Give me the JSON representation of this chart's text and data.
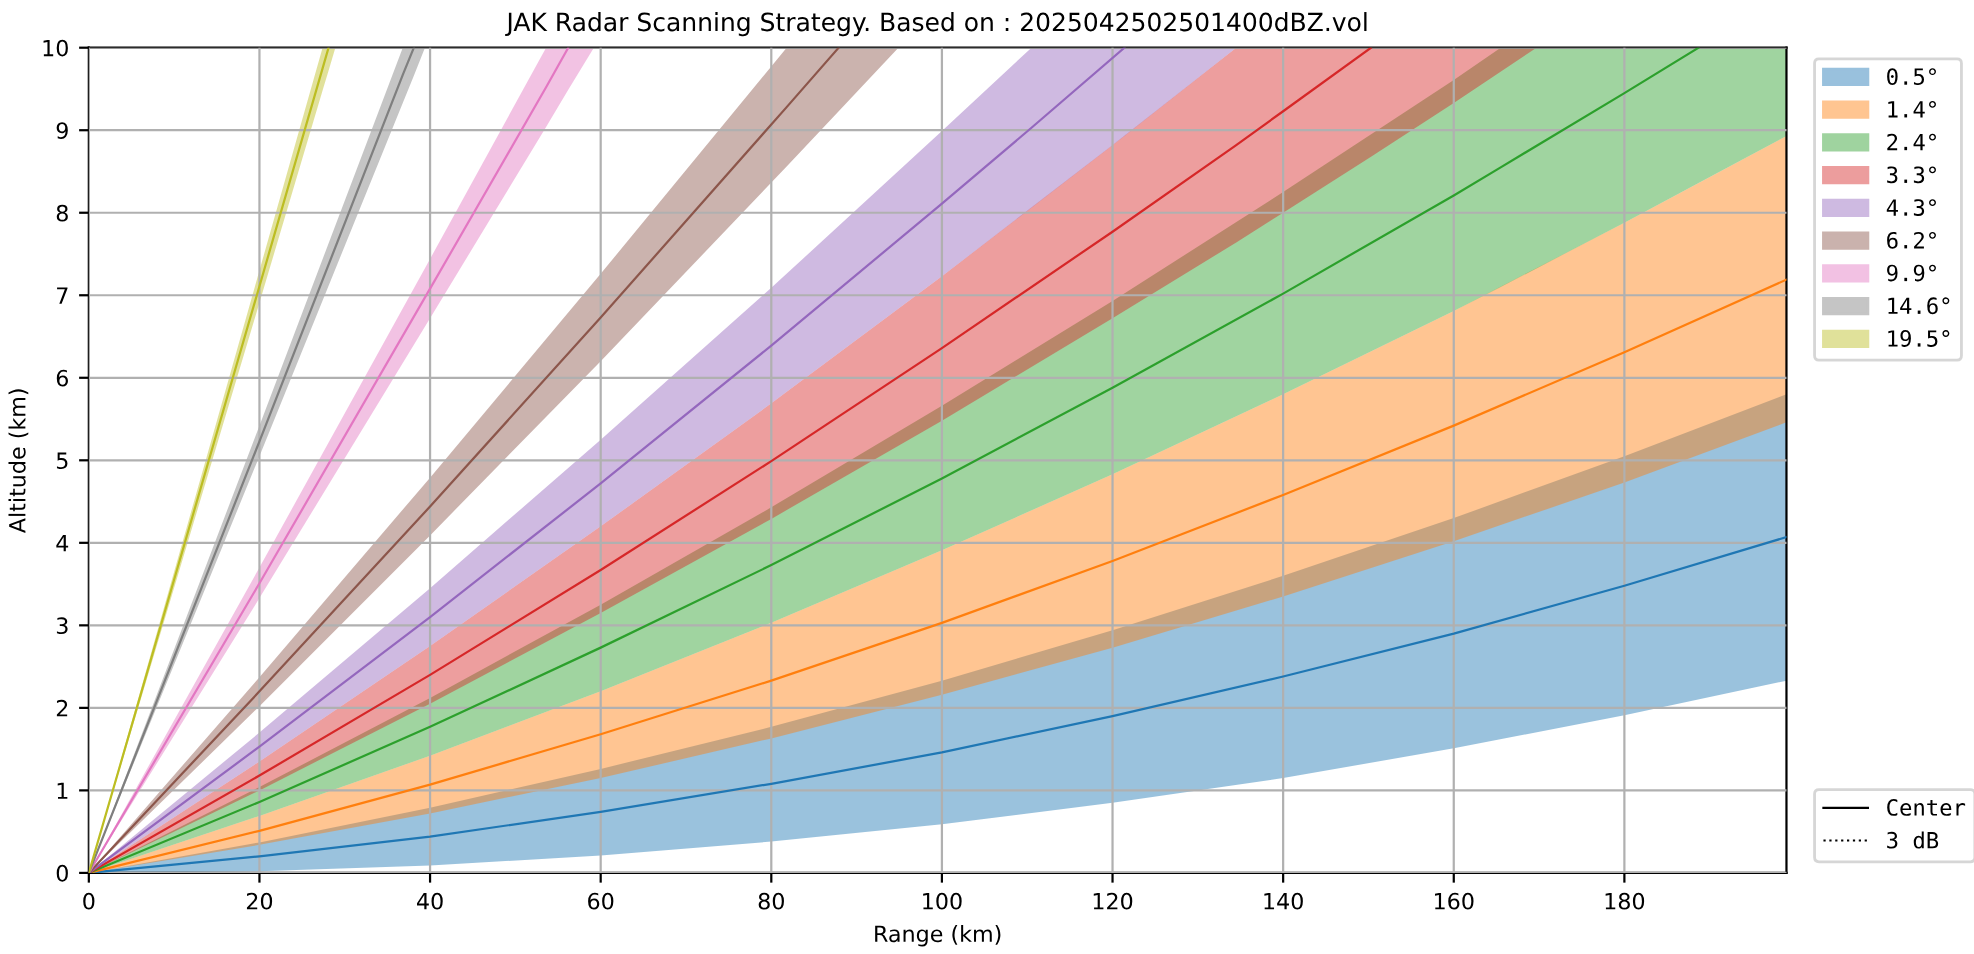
{
  "chart_data": {
    "type": "line",
    "title": "JAK Radar Scanning Strategy. Based on : 2025042502501400dBZ.vol",
    "xlabel": "Range (km)",
    "ylabel": "Altitude (km)",
    "xlim": [
      0,
      199
    ],
    "ylim": [
      0,
      10
    ],
    "xticks": [
      0,
      20,
      40,
      60,
      80,
      100,
      120,
      140,
      160,
      180
    ],
    "yticks": [
      0,
      1,
      2,
      3,
      4,
      5,
      6,
      7,
      8,
      9,
      10
    ],
    "grid": true,
    "legend": "right",
    "annotations": [
      "Center",
      "3 dB"
    ],
    "series": [
      {
        "name": "0.5°",
        "color": "#1f77b4",
        "x": [
          0,
          20,
          40,
          60,
          80,
          100,
          120,
          140,
          160,
          180,
          199
        ],
        "values": [
          0,
          0.2,
          0.44,
          0.74,
          1.08,
          1.46,
          1.9,
          2.38,
          2.9,
          3.48,
          4.07
        ],
        "lower": [
          0,
          0.02,
          0.09,
          0.21,
          0.38,
          0.59,
          0.85,
          1.15,
          1.51,
          1.91,
          2.33
        ],
        "upper": [
          0,
          0.37,
          0.79,
          1.26,
          1.77,
          2.33,
          2.94,
          3.6,
          4.3,
          5.05,
          5.8
        ]
      },
      {
        "name": "1.4°",
        "color": "#ff7f0e",
        "x": [
          0,
          20,
          40,
          60,
          80,
          100,
          120,
          140,
          160,
          180,
          199
        ],
        "values": [
          0,
          0.51,
          1.07,
          1.68,
          2.33,
          3.03,
          3.78,
          4.58,
          5.42,
          6.31,
          7.19
        ],
        "lower": [
          0,
          0.34,
          0.72,
          1.15,
          1.63,
          2.16,
          2.73,
          3.35,
          4.02,
          4.73,
          5.46
        ],
        "upper": [
          0,
          0.69,
          1.42,
          2.2,
          3.03,
          3.91,
          4.83,
          5.8,
          6.81,
          7.88,
          8.93
        ]
      },
      {
        "name": "2.4°",
        "color": "#2ca02c",
        "x": [
          0,
          20,
          40,
          60,
          80,
          100,
          120,
          140,
          160,
          165.5,
          180,
          188.7,
          199
        ],
        "values": [
          0,
          0.86,
          1.77,
          2.73,
          3.73,
          4.78,
          5.88,
          7.02,
          8.21,
          8.55,
          9.45,
          10.0,
          null
        ],
        "lower": [
          0,
          0.69,
          1.42,
          2.2,
          3.03,
          3.91,
          4.83,
          5.8,
          6.81,
          7.1,
          7.88,
          8.36,
          8.93
        ],
        "upper": [
          0,
          1.04,
          2.12,
          3.25,
          4.43,
          5.66,
          6.93,
          8.25,
          9.61,
          10.0,
          10.0,
          10.0,
          10.0
        ]
      },
      {
        "name": "3.3°",
        "color": "#d62728",
        "x": [
          0,
          20,
          40,
          60,
          80,
          100,
          120,
          134.5,
          140,
          150.3,
          160,
          169.7
        ],
        "values": [
          0,
          1.18,
          2.4,
          3.67,
          4.99,
          6.36,
          7.77,
          8.82,
          9.23,
          10.0,
          null,
          null
        ],
        "lower": [
          0,
          1.0,
          2.05,
          3.15,
          4.29,
          5.48,
          6.72,
          7.64,
          8.0,
          8.68,
          9.33,
          10.0
        ],
        "upper": [
          0,
          1.35,
          2.75,
          4.2,
          5.69,
          7.23,
          8.82,
          10.0,
          10.0,
          10.0,
          10.0,
          10.0
        ]
      },
      {
        "name": "4.3°",
        "color": "#9467bd",
        "x": [
          0,
          20,
          40,
          60,
          80,
          100,
          110.5,
          121.4,
          134.5
        ],
        "values": [
          0,
          1.53,
          3.1,
          4.72,
          6.39,
          8.11,
          9.03,
          10.0,
          null
        ],
        "lower": [
          0,
          1.35,
          2.75,
          4.2,
          5.69,
          7.23,
          8.06,
          8.93,
          10.0
        ],
        "upper": [
          0,
          1.7,
          3.45,
          5.25,
          7.09,
          8.99,
          10.0,
          10.0,
          10.0
        ]
      },
      {
        "name": "6.2°",
        "color": "#8c564b",
        "x": [
          0,
          20,
          40,
          60,
          81.8,
          87.9,
          94.9
        ],
        "values": [
          0,
          2.2,
          4.44,
          6.73,
          9.28,
          10.0,
          null
        ],
        "lower": [
          0,
          2.02,
          4.09,
          6.2,
          8.56,
          9.23,
          10.0
        ],
        "upper": [
          0,
          2.37,
          4.79,
          7.26,
          10.0,
          10.0,
          10.0
        ]
      },
      {
        "name": "9.9°",
        "color": "#e377c2",
        "x": [
          0,
          20,
          40,
          53.6,
          56.2,
          59.2
        ],
        "values": [
          0,
          3.51,
          7.08,
          9.52,
          10.0,
          null
        ],
        "lower": [
          0,
          3.33,
          6.72,
          9.04,
          9.49,
          10.0
        ],
        "upper": [
          0,
          3.7,
          7.44,
          10.0,
          10.0,
          10.0
        ]
      },
      {
        "name": "14.6°",
        "color": "#7f7f7f",
        "x": [
          0,
          20,
          36.8,
          38.1,
          39.4
        ],
        "values": [
          0,
          5.23,
          9.67,
          10.0,
          null
        ],
        "lower": [
          0,
          5.05,
          9.33,
          9.66,
          10.0
        ],
        "upper": [
          0,
          5.42,
          10.0,
          10.0,
          10.0
        ]
      },
      {
        "name": "19.5°",
        "color": "#bcbd22",
        "x": [
          0,
          20,
          27.4,
          28.1,
          28.9
        ],
        "values": [
          0,
          7.11,
          9.75,
          10.0,
          null
        ],
        "lower": [
          0,
          6.91,
          9.48,
          9.72,
          10.0
        ],
        "upper": [
          0,
          7.3,
          10.0,
          10.0,
          10.0
        ]
      }
    ]
  }
}
